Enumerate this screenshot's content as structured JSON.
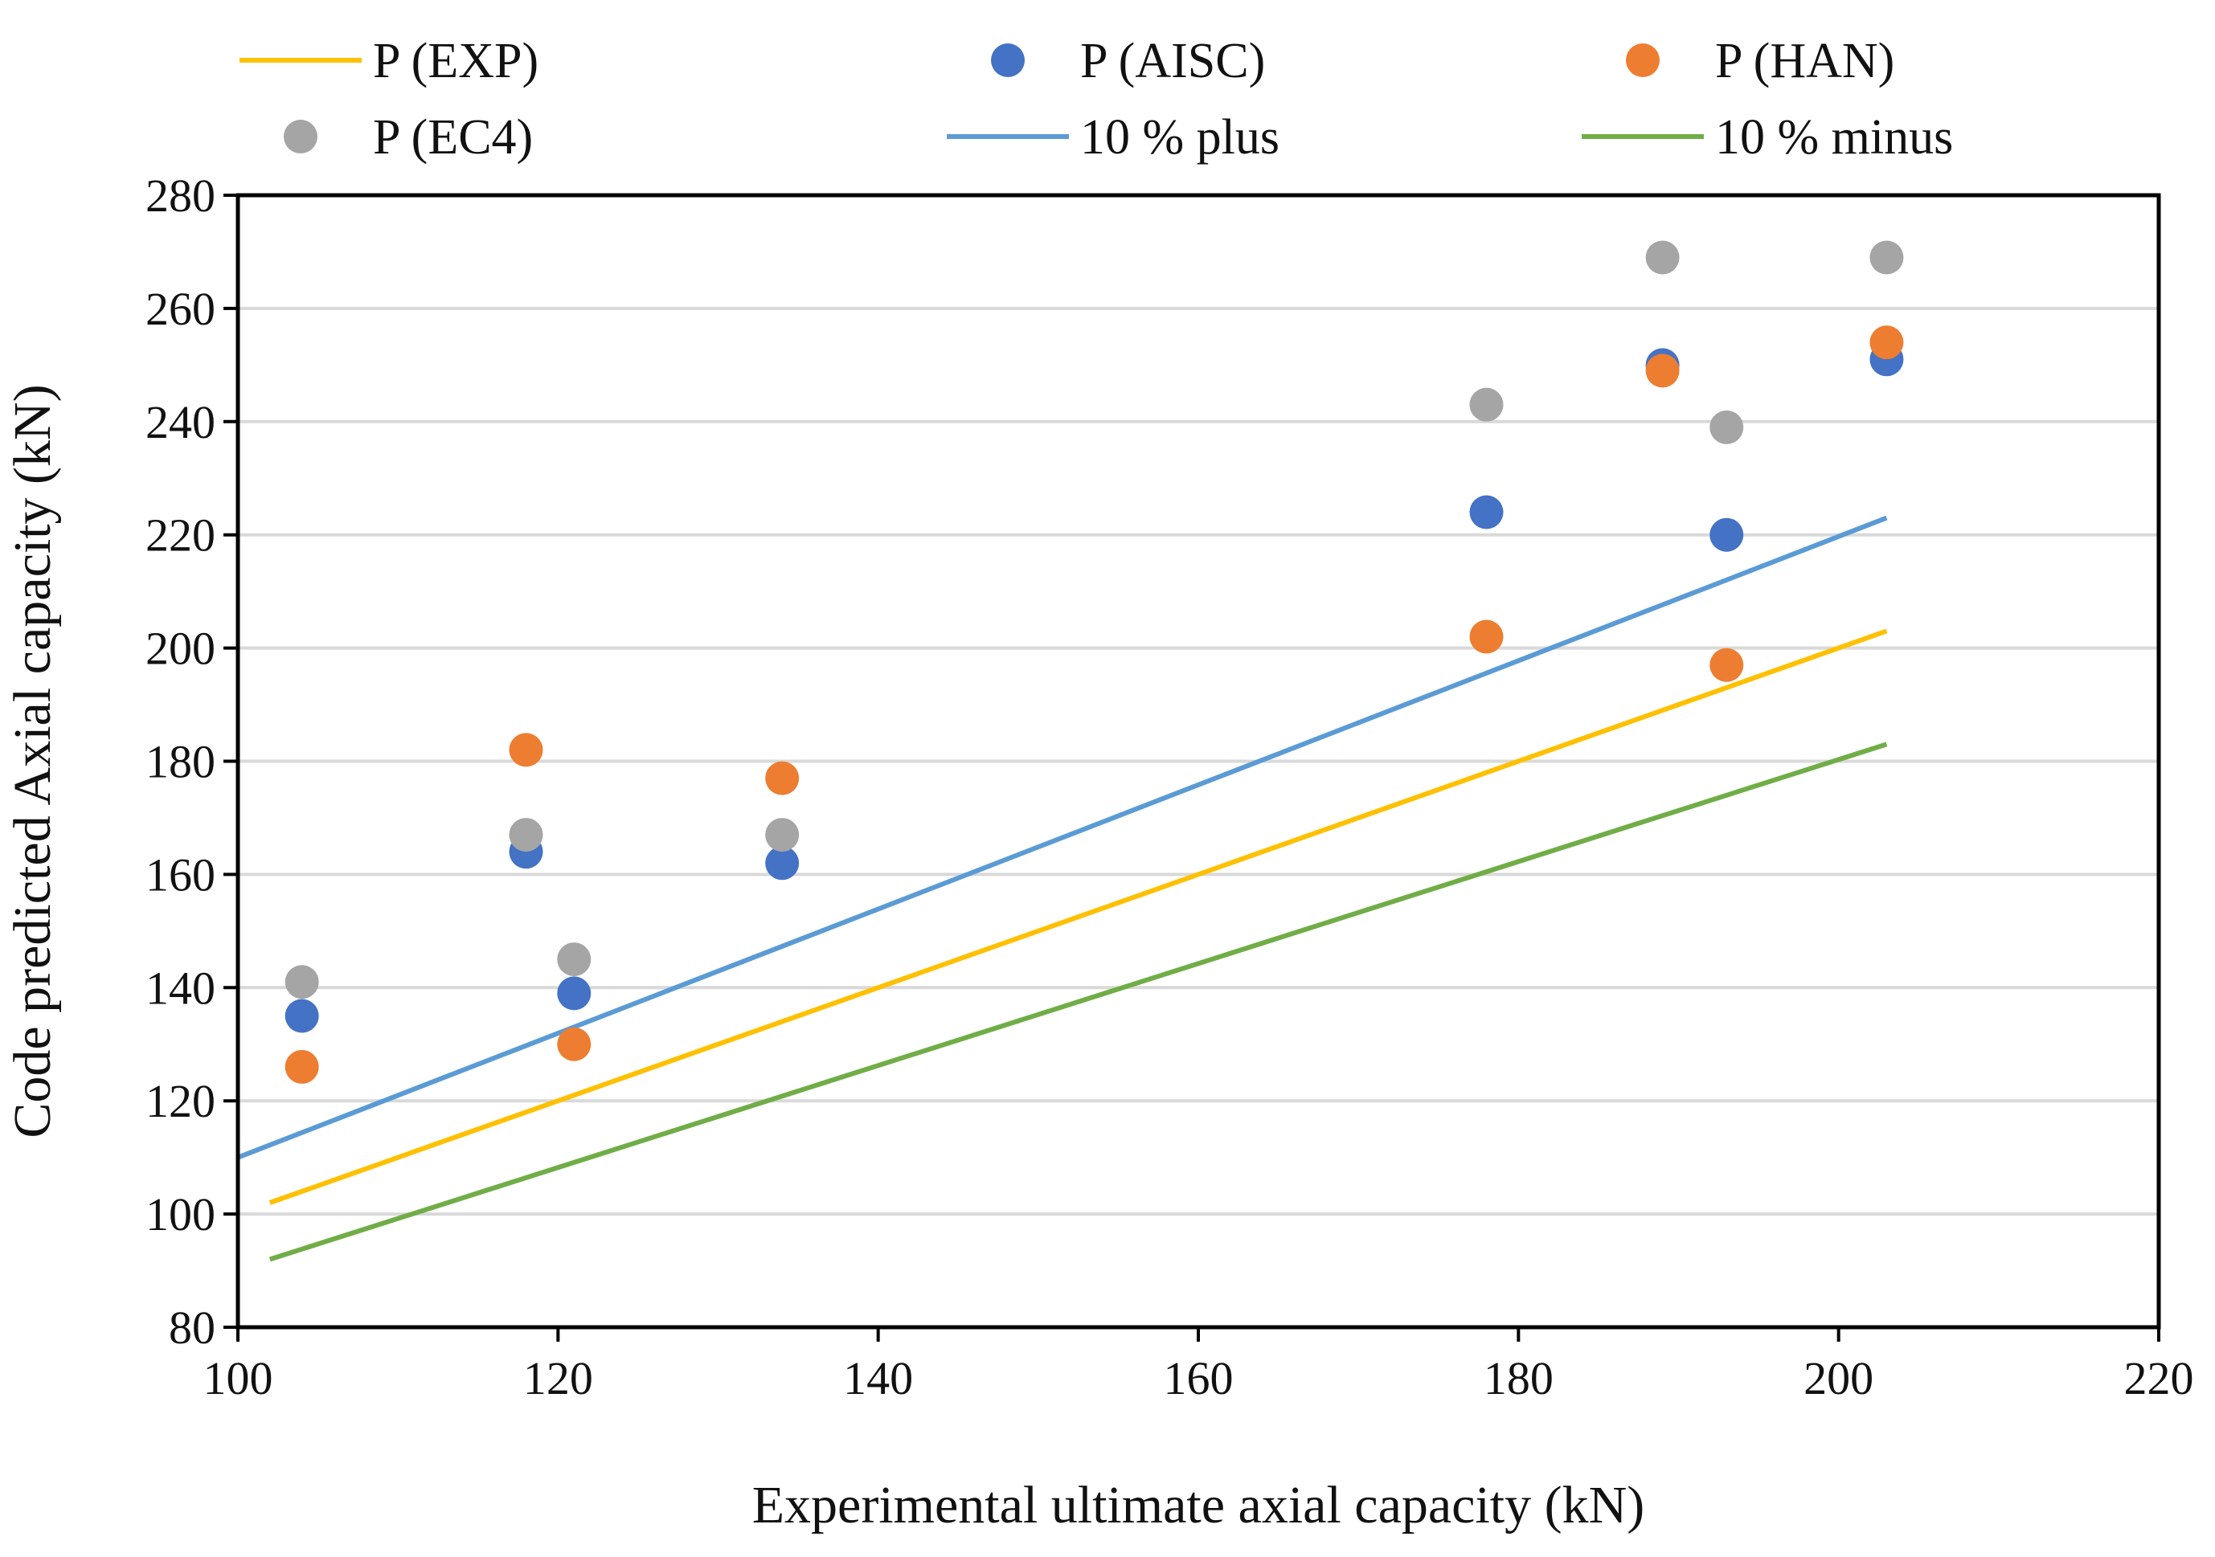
{
  "chart_data": {
    "type": "scatter",
    "title": "",
    "xlabel": "Experimental ultimate axial capacity (kN)",
    "ylabel": "Code predicted Axial capacity (kN)",
    "xlim": [
      100,
      220
    ],
    "ylim": [
      80,
      280
    ],
    "x_ticks": [
      "100",
      "120",
      "140",
      "160",
      "180",
      "200",
      "220"
    ],
    "y_ticks": [
      "80",
      "100",
      "120",
      "140",
      "160",
      "180",
      "200",
      "220",
      "240",
      "260",
      "280"
    ],
    "grid": "horizontal",
    "legend_position": "top",
    "series": [
      {
        "name": "P (EXP)",
        "kind": "line",
        "color": "#FFC000",
        "points": [
          [
            102,
            102
          ],
          [
            203,
            203
          ]
        ]
      },
      {
        "name": "P (AISC)",
        "kind": "scatter",
        "color": "#4472C4",
        "points": [
          [
            104,
            135
          ],
          [
            118,
            164
          ],
          [
            121,
            139
          ],
          [
            134,
            162
          ],
          [
            178,
            224
          ],
          [
            189,
            250
          ],
          [
            193,
            220
          ],
          [
            203,
            251
          ]
        ]
      },
      {
        "name": "P (HAN)",
        "kind": "scatter",
        "color": "#ED7D31",
        "points": [
          [
            104,
            126
          ],
          [
            118,
            182
          ],
          [
            121,
            130
          ],
          [
            134,
            177
          ],
          [
            178,
            202
          ],
          [
            189,
            249
          ],
          [
            193,
            197
          ],
          [
            203,
            254
          ]
        ]
      },
      {
        "name": "P (EC4)",
        "kind": "scatter",
        "color": "#A5A5A5",
        "points": [
          [
            104,
            141
          ],
          [
            118,
            167
          ],
          [
            121,
            145
          ],
          [
            134,
            167
          ],
          [
            178,
            243
          ],
          [
            189,
            269
          ],
          [
            193,
            239
          ],
          [
            203,
            269
          ]
        ]
      },
      {
        "name": "10 % plus",
        "kind": "line",
        "color": "#5B9BD5",
        "points": [
          [
            100,
            110
          ],
          [
            203,
            223
          ]
        ]
      },
      {
        "name": "10 % minus",
        "kind": "line",
        "color": "#70AD47",
        "points": [
          [
            102,
            92
          ],
          [
            203,
            183
          ]
        ]
      }
    ]
  }
}
